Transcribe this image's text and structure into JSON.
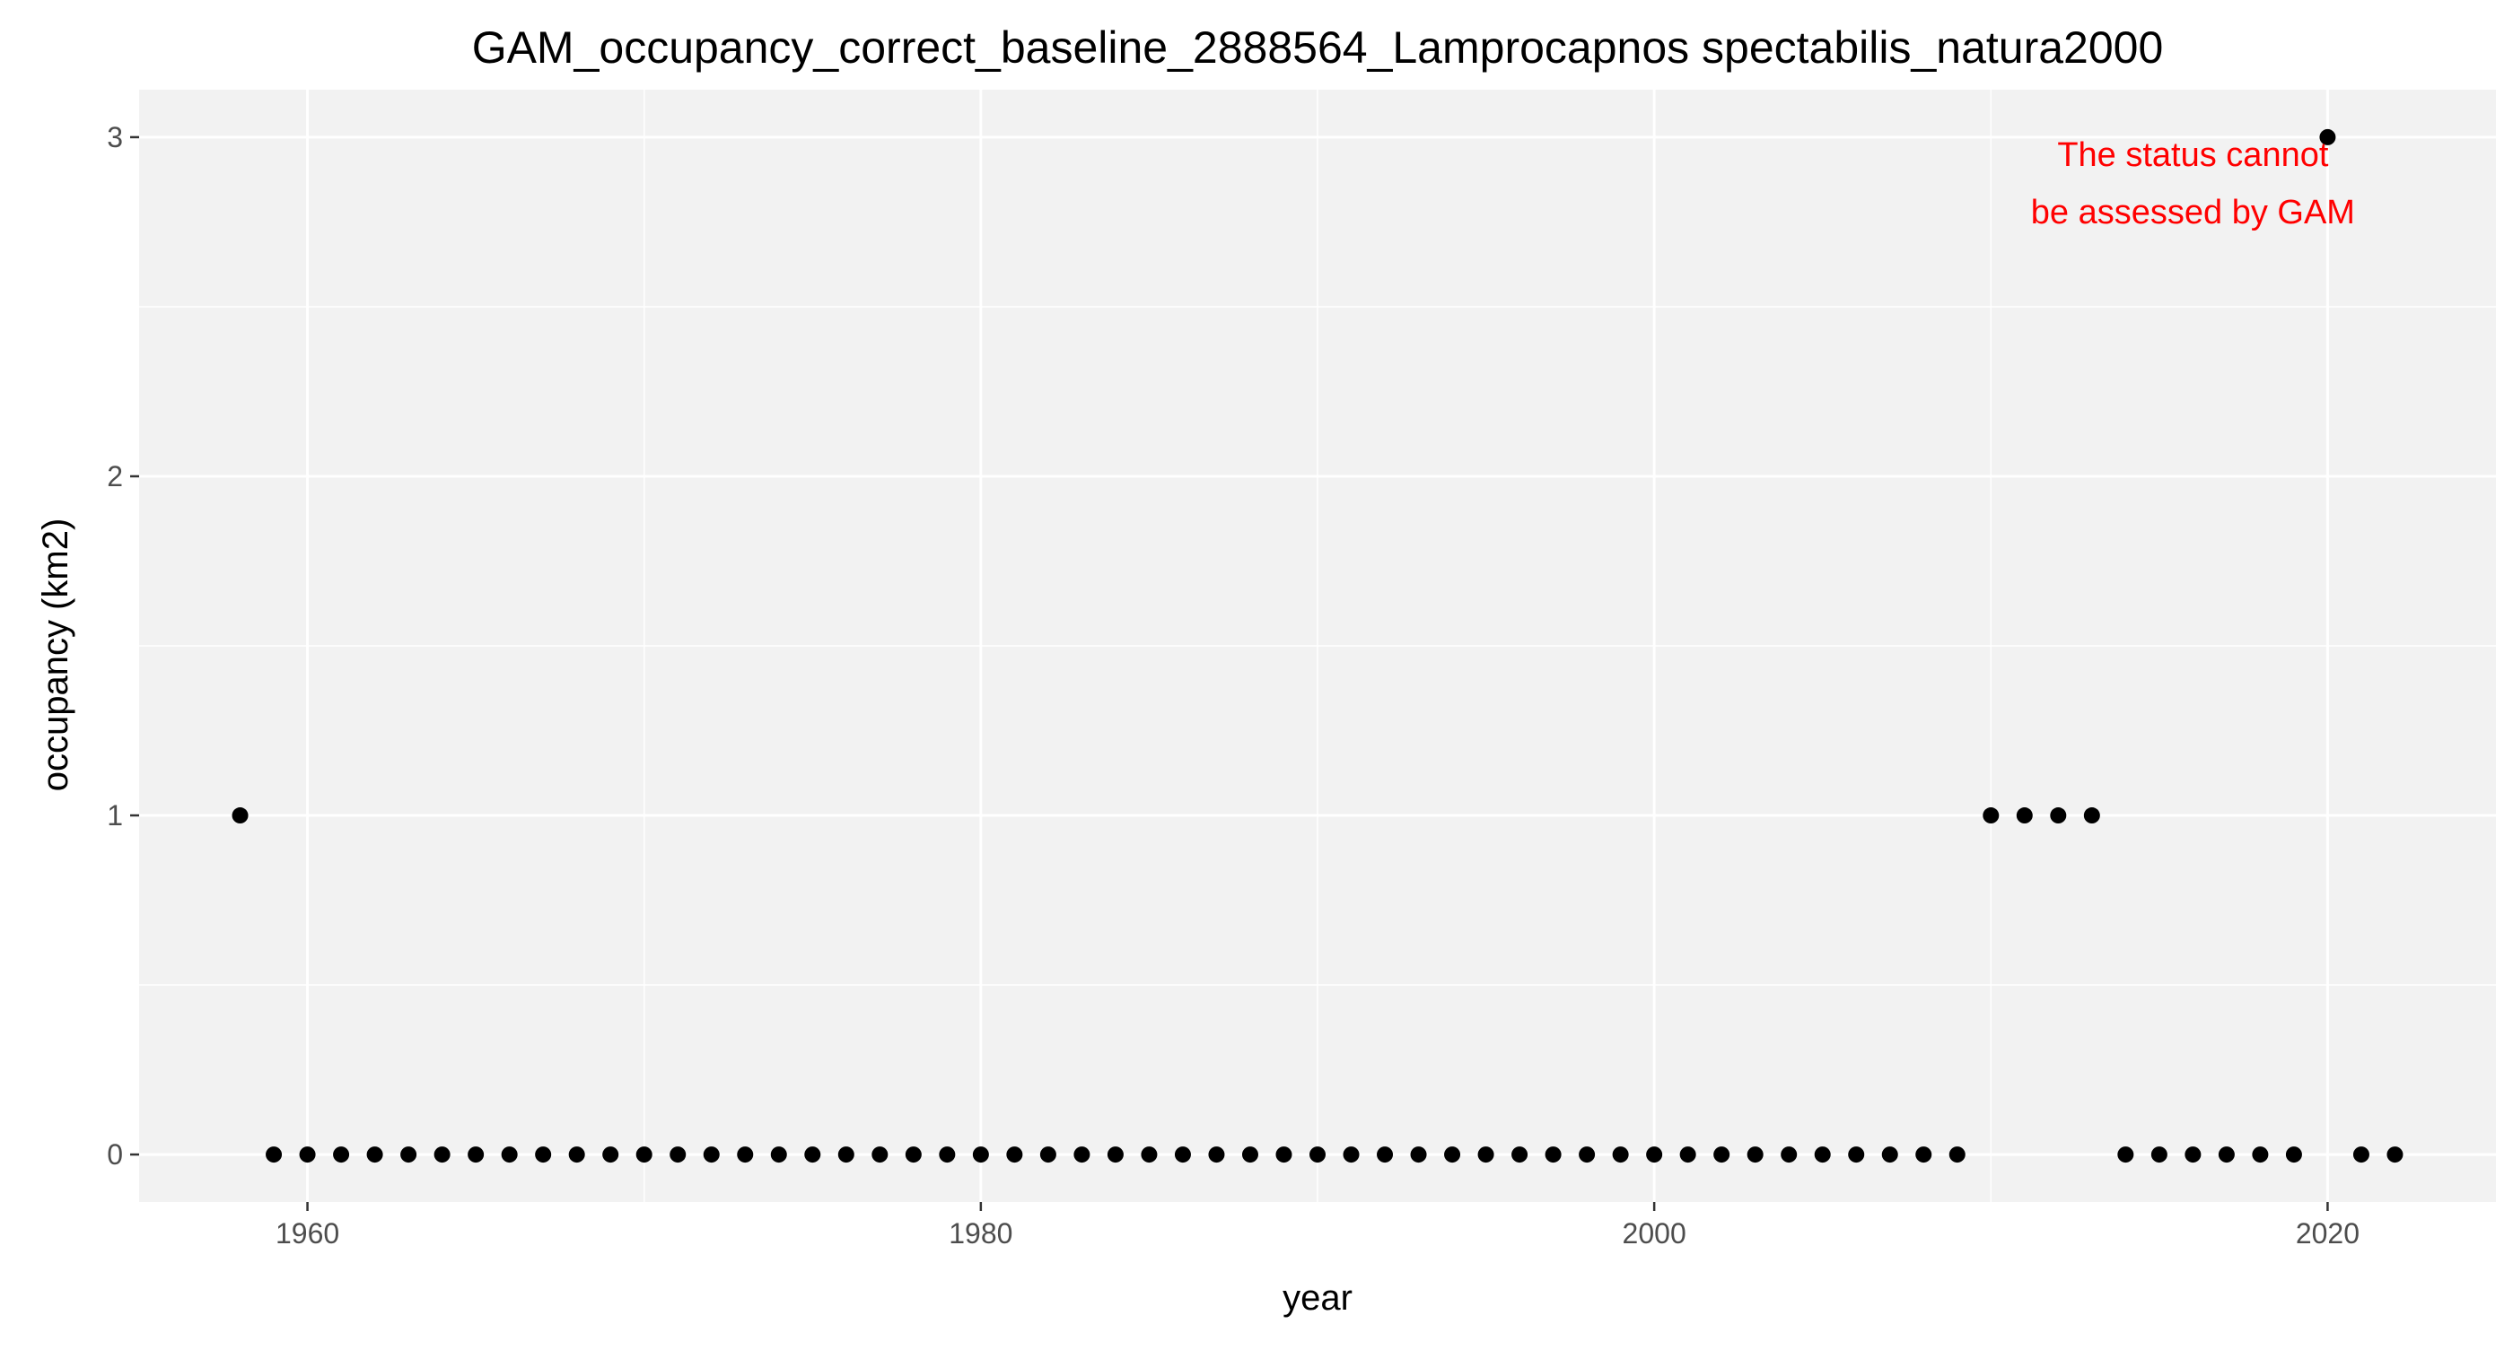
{
  "chart_data": {
    "type": "scatter",
    "title": "GAM_occupancy_correct_baseline_2888564_Lamprocapnos spectabilis_natura2000",
    "xlabel": "year",
    "ylabel": "occupancy (km2)",
    "xlim": [
      1955,
      2025
    ],
    "ylim": [
      -0.14,
      3.14
    ],
    "x_ticks": [
      1960,
      1980,
      2000,
      2020
    ],
    "y_ticks": [
      0,
      1,
      2,
      3
    ],
    "x_tick_labels": [
      "1960",
      "1980",
      "2000",
      "2020"
    ],
    "y_tick_labels": [
      "0",
      "1",
      "2",
      "3"
    ],
    "grid": true,
    "panel_background": "#f2f2f2",
    "grid_color": "#ffffff",
    "point_color": "#000000",
    "series": [
      {
        "x": [
          1958,
          1959,
          1960,
          1961,
          1962,
          1963,
          1964,
          1965,
          1966,
          1967,
          1968,
          1969,
          1970,
          1971,
          1972,
          1973,
          1974,
          1975,
          1976,
          1977,
          1978,
          1979,
          1980,
          1981,
          1982,
          1983,
          1984,
          1985,
          1986,
          1987,
          1988,
          1989,
          1990,
          1991,
          1992,
          1993,
          1994,
          1995,
          1996,
          1997,
          1998,
          1999,
          2000,
          2001,
          2002,
          2003,
          2004,
          2005,
          2006,
          2007,
          2008,
          2009,
          2010,
          2011,
          2012,
          2013,
          2014,
          2015,
          2016,
          2017,
          2018,
          2019,
          2020,
          2021,
          2022
        ],
        "y": [
          1,
          0,
          0,
          0,
          0,
          0,
          0,
          0,
          0,
          0,
          0,
          0,
          0,
          0,
          0,
          0,
          0,
          0,
          0,
          0,
          0,
          0,
          0,
          0,
          0,
          0,
          0,
          0,
          0,
          0,
          0,
          0,
          0,
          0,
          0,
          0,
          0,
          0,
          0,
          0,
          0,
          0,
          0,
          0,
          0,
          0,
          0,
          0,
          0,
          0,
          0,
          0,
          1,
          1,
          1,
          1,
          0,
          0,
          0,
          0,
          0,
          0,
          3,
          0,
          0
        ]
      }
    ],
    "annotation": {
      "lines": [
        "The status cannot",
        "be assessed by GAM"
      ],
      "color": "#ff0000",
      "anchor_x": 2016,
      "line_y": [
        2.95,
        2.78
      ]
    }
  }
}
